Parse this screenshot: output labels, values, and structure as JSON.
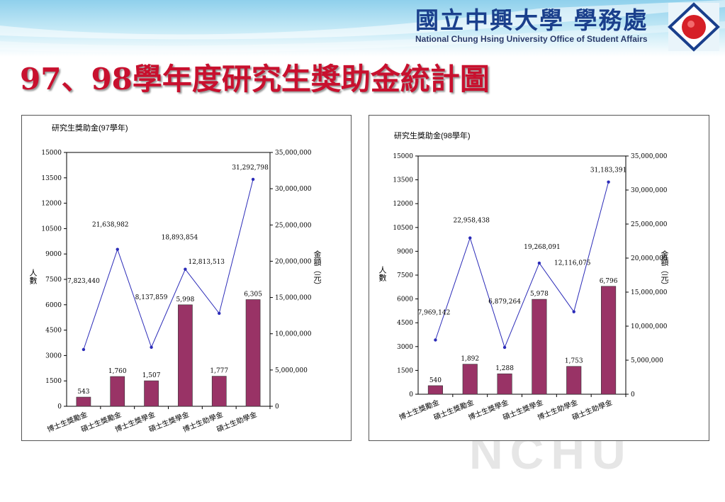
{
  "header": {
    "university_cn": "國立中興大學 學務處",
    "university_en": "National Chung Hsing University Office of Student Affairs",
    "watermark": "NCHU",
    "colors": {
      "band": "#8fd0ec",
      "title": "#c8102e",
      "bar": "#993366",
      "line": "#2b2bb8"
    }
  },
  "page": {
    "title": "97、98學年度研究生獎助金統計圖"
  },
  "chart_data": [
    {
      "type": "bar",
      "title": "研究生獎助金(97學年)",
      "categories": [
        "博士生獎勵金",
        "碩士生獎勵金",
        "博士生獎學金",
        "碩士生獎學金",
        "博士生助學金",
        "碩士生助學金"
      ],
      "ylabel": "人數",
      "y2label": "金額（元）",
      "ylim": [
        0,
        15000
      ],
      "yticks": [
        "0",
        "1500",
        "3000",
        "4500",
        "6000",
        "7500",
        "9000",
        "10500",
        "12000",
        "13500",
        "15000"
      ],
      "y2lim": [
        0,
        35000000
      ],
      "y2ticks": [
        "0",
        "5,000,000",
        "10,000,000",
        "15,000,000",
        "20,000,000",
        "25,000,000",
        "30,000,000",
        "35,000,000"
      ],
      "series": [
        {
          "values": [
            543,
            1760,
            1507,
            5998,
            1777,
            6305
          ],
          "labels": [
            "543",
            "1,760",
            "1,507",
            "5,998",
            "1,777",
            "6,305"
          ]
        },
        {
          "values": [
            7823440,
            21638982,
            8137859,
            18893854,
            12813513,
            31292798
          ],
          "labels": [
            "7,823,440",
            "21,638,982",
            "8,137,859",
            "18,893,854",
            "12,813,513",
            "31,292,798"
          ]
        }
      ]
    },
    {
      "type": "bar",
      "title": "研究生獎助金(98學年)",
      "categories": [
        "博士生獎勵金",
        "碩士生獎勵金",
        "博士生獎學金",
        "碩士生獎學金",
        "博士生助學金",
        "碩士生助學金"
      ],
      "ylabel": "人數",
      "y2label": "金額（元）",
      "ylim": [
        0,
        15000
      ],
      "yticks": [
        "0",
        "1500",
        "3000",
        "4500",
        "6000",
        "7500",
        "9000",
        "10500",
        "12000",
        "13500",
        "15000"
      ],
      "y2lim": [
        0,
        35000000
      ],
      "y2ticks": [
        "0",
        "5,000,000",
        "10,000,000",
        "15,000,000",
        "20,000,000",
        "25,000,000",
        "30,000,000",
        "35,000,000"
      ],
      "series": [
        {
          "values": [
            540,
            1892,
            1288,
            5978,
            1753,
            6796
          ],
          "labels": [
            "540",
            "1,892",
            "1,288",
            "5,978",
            "1,753",
            "6,796"
          ]
        },
        {
          "values": [
            7969142,
            22958438,
            6879264,
            19268091,
            12116075,
            31183391
          ],
          "labels": [
            "7,969,142",
            "22,958,438",
            "6,879,264",
            "19,268,091",
            "12,116,075",
            "31,183,391"
          ]
        }
      ]
    }
  ]
}
